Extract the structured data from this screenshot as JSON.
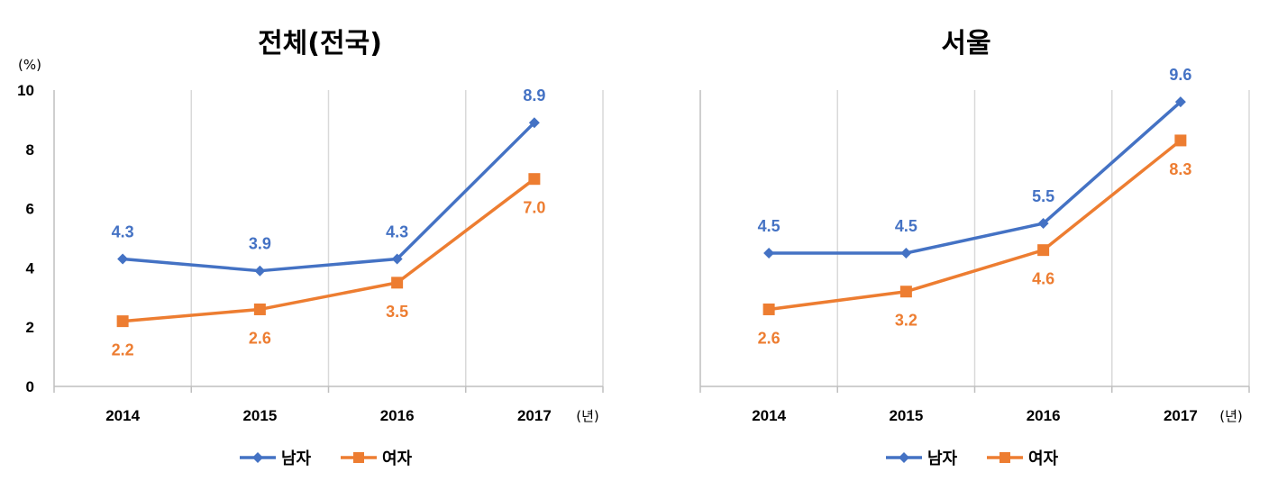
{
  "chart_data": [
    {
      "type": "line",
      "title": "전체(전국)",
      "y_unit": "(%)",
      "x_unit": "(년)",
      "categories": [
        "2014",
        "2015",
        "2016",
        "2017"
      ],
      "ylim": [
        0,
        10
      ],
      "y_ticks": [
        "0",
        "2",
        "4",
        "6",
        "8",
        "10"
      ],
      "grid": "vertical",
      "legend_position": "bottom",
      "series": [
        {
          "name": "남자",
          "values": [
            4.3,
            3.9,
            4.3,
            8.9
          ],
          "labels": [
            "4.3",
            "3.9",
            "4.3",
            "8.9"
          ],
          "color": "#4472C4",
          "marker": "diamond"
        },
        {
          "name": "여자",
          "values": [
            2.2,
            2.6,
            3.5,
            7.0
          ],
          "labels": [
            "2.2",
            "2.6",
            "3.5",
            "7.0"
          ],
          "color": "#ED7D31",
          "marker": "square"
        }
      ]
    },
    {
      "type": "line",
      "title": "서울",
      "x_unit": "(년)",
      "categories": [
        "2014",
        "2015",
        "2016",
        "2017"
      ],
      "ylim": [
        0,
        10
      ],
      "grid": "vertical",
      "legend_position": "bottom",
      "series": [
        {
          "name": "남자",
          "values": [
            4.5,
            4.5,
            5.5,
            9.6
          ],
          "labels": [
            "4.5",
            "4.5",
            "5.5",
            "9.6"
          ],
          "color": "#4472C4",
          "marker": "diamond"
        },
        {
          "name": "여자",
          "values": [
            2.6,
            3.2,
            4.6,
            8.3
          ],
          "labels": [
            "2.6",
            "3.2",
            "4.6",
            "8.3"
          ],
          "color": "#ED7D31",
          "marker": "square"
        }
      ]
    }
  ]
}
